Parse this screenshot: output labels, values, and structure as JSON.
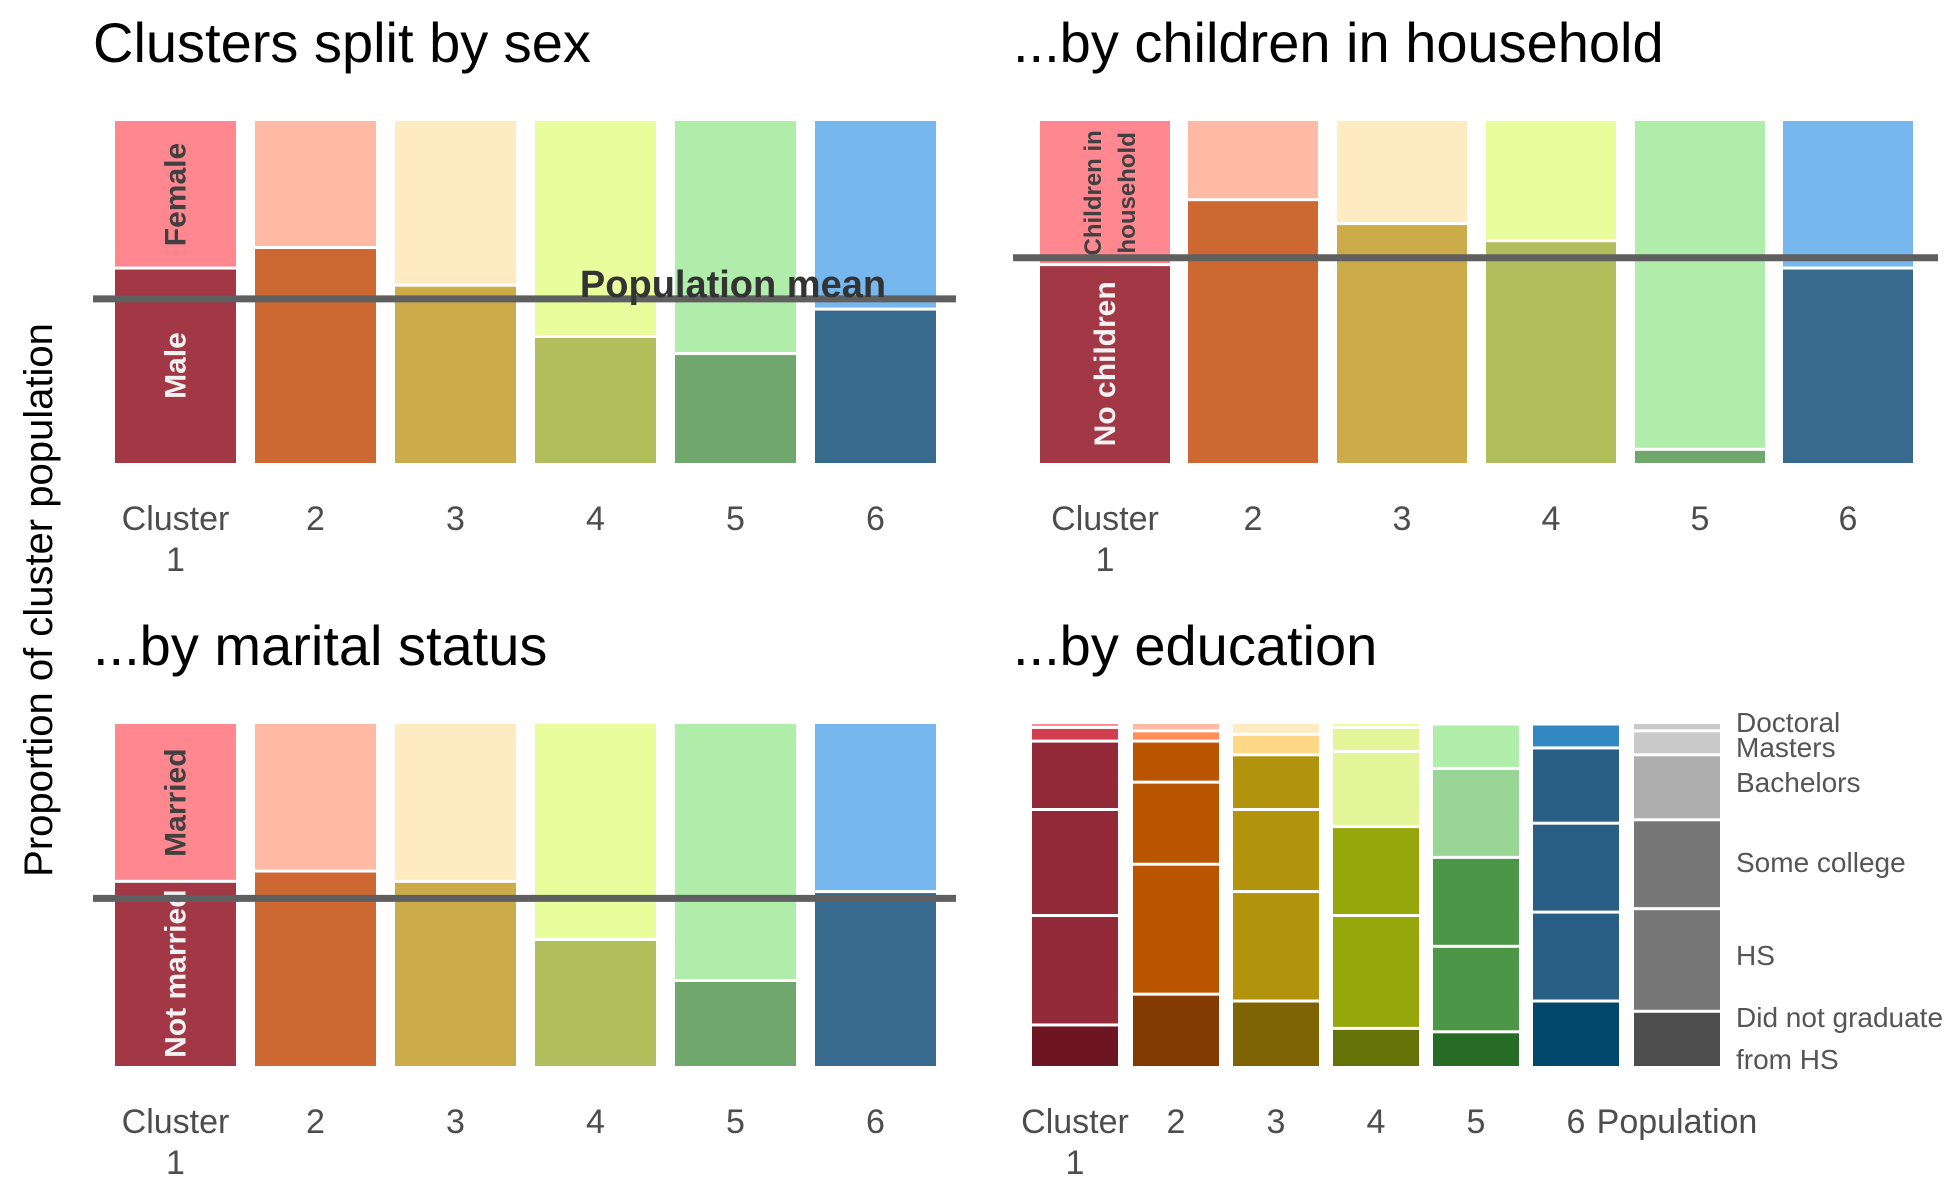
{
  "figure": {
    "ylabel": "Proportion of cluster population"
  },
  "chart_data": [
    {
      "type": "bar",
      "stacked": true,
      "title": "Clusters split by sex",
      "categories": [
        "Cluster\n1",
        "2",
        "3",
        "4",
        "5",
        "6"
      ],
      "ylim": [
        0,
        1
      ],
      "series": [
        {
          "name": "Male",
          "values": [
            0.57,
            0.63,
            0.52,
            0.37,
            0.32,
            0.45
          ]
        },
        {
          "name": "Female",
          "values": [
            0.43,
            0.37,
            0.48,
            0.63,
            0.68,
            0.55
          ]
        }
      ],
      "segment_labels": {
        "Male": "Male",
        "Female": "Female"
      },
      "reference_line": {
        "label": "Population mean",
        "value": 0.48
      },
      "colors": {
        "bottom": [
          "#a23845",
          "#cd6832",
          "#ccac4a",
          "#b0bf5c",
          "#70a76c",
          "#386a8e"
        ],
        "top": [
          "#ff8790",
          "#ffbaa5",
          "#ffebc2",
          "#e9fd9d",
          "#b0edab",
          "#76b8ee"
        ]
      }
    },
    {
      "type": "bar",
      "stacked": true,
      "title": "...by children in household",
      "categories": [
        "Cluster\n1",
        "2",
        "3",
        "4",
        "5",
        "6"
      ],
      "ylim": [
        0,
        1
      ],
      "series": [
        {
          "name": "No children",
          "values": [
            0.58,
            0.77,
            0.7,
            0.65,
            0.04,
            0.57
          ]
        },
        {
          "name": "Children in household",
          "values": [
            0.42,
            0.23,
            0.3,
            0.35,
            0.96,
            0.43
          ]
        }
      ],
      "segment_labels": {
        "No children": "No children",
        "Children in household": "Children in\nhousehold"
      },
      "reference_line": {
        "value": 0.6
      },
      "colors": {
        "bottom": [
          "#a23845",
          "#cd6832",
          "#ccac4a",
          "#b0bf5c",
          "#70a76c",
          "#386a8e"
        ],
        "top": [
          "#ff8790",
          "#ffbaa5",
          "#ffebc2",
          "#e9fd9d",
          "#b0edab",
          "#76b8ee"
        ]
      }
    },
    {
      "type": "bar",
      "stacked": true,
      "title": "...by marital status",
      "categories": [
        "Cluster\n1",
        "2",
        "3",
        "4",
        "5",
        "6"
      ],
      "ylim": [
        0,
        1
      ],
      "series": [
        {
          "name": "Not married",
          "values": [
            0.54,
            0.57,
            0.54,
            0.37,
            0.25,
            0.51
          ]
        },
        {
          "name": "Married",
          "values": [
            0.46,
            0.43,
            0.46,
            0.63,
            0.75,
            0.49
          ]
        }
      ],
      "segment_labels": {
        "Not married": "Not married",
        "Married": "Married"
      },
      "reference_line": {
        "value": 0.49
      },
      "colors": {
        "bottom": [
          "#a23845",
          "#cd6832",
          "#ccac4a",
          "#b0bf5c",
          "#70a76c",
          "#386a8e"
        ],
        "top": [
          "#ff8790",
          "#ffbaa5",
          "#ffebc2",
          "#e9fd9d",
          "#b0edab",
          "#76b8ee"
        ]
      }
    },
    {
      "type": "bar",
      "stacked": true,
      "title": "...by education",
      "categories": [
        "Cluster\n1",
        "2",
        "3",
        "4",
        "5",
        "6",
        "Population"
      ],
      "ylim": [
        0,
        1
      ],
      "series": [
        {
          "name": "Did not graduate from HS",
          "values": [
            0.12,
            0.21,
            0.19,
            0.11,
            0.1,
            0.19,
            0.16
          ]
        },
        {
          "name": "HS",
          "values": [
            0.32,
            0.38,
            0.32,
            0.33,
            0.25,
            0.26,
            0.3
          ]
        },
        {
          "name": "Some college",
          "values": [
            0.31,
            0.24,
            0.24,
            0.26,
            0.26,
            0.26,
            0.26
          ]
        },
        {
          "name": "Bachelors",
          "values": [
            0.2,
            0.12,
            0.16,
            0.22,
            0.26,
            0.22,
            0.19
          ]
        },
        {
          "name": "Masters",
          "values": [
            0.04,
            0.03,
            0.06,
            0.07,
            0.13,
            0.07,
            0.07
          ]
        },
        {
          "name": "Doctoral",
          "values": [
            0.01,
            0.02,
            0.03,
            0.01,
            0.0,
            0.0,
            0.02
          ]
        }
      ],
      "legend_labels": [
        "Doctoral",
        "Masters",
        "Bachelors",
        "Some college",
        "HS",
        "Did not graduate\nfrom HS"
      ],
      "colors": [
        [
          "#6e1524",
          "#922a39",
          "#922a39",
          "#922a39",
          "#d23e4e",
          "#ff8790"
        ],
        [
          "#843b02",
          "#ba5601",
          "#ba5601",
          "#ba5601",
          "#ff8f59",
          "#ffbaa5"
        ],
        [
          "#7e6404",
          "#b2930e",
          "#b2930e",
          "#b2930e",
          "#ffd887",
          "#ffebc2"
        ],
        [
          "#637307",
          "#96a70b",
          "#96a70b",
          "#e3f598",
          "#e3f598",
          "#e9fd9d"
        ],
        [
          "#276b26",
          "#4c9747",
          "#4c9747",
          "#98d597",
          "#b0edab",
          "#b0edab"
        ],
        [
          "#02486d",
          "#2a5f85",
          "#2a5f85",
          "#2a5f85",
          "#3289c1",
          "#76b8ee"
        ],
        [
          "#4d4d4d",
          "#777777",
          "#777777",
          "#adadad",
          "#c9c9c9",
          "#c9c9c9"
        ]
      ]
    }
  ]
}
